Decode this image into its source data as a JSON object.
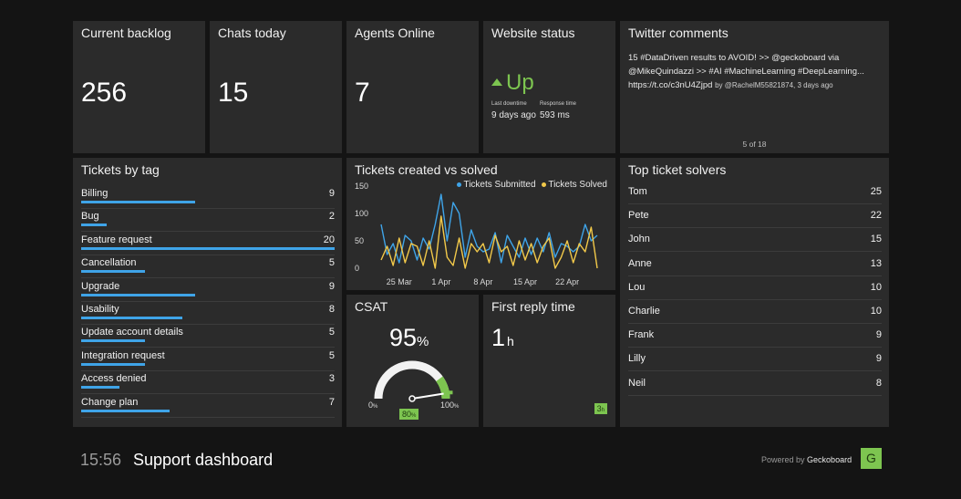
{
  "widgets": {
    "backlog": {
      "title": "Current backlog",
      "value": "256"
    },
    "chats": {
      "title": "Chats today",
      "value": "15"
    },
    "agents": {
      "title": "Agents Online",
      "value": "7"
    },
    "website": {
      "title": "Website status",
      "status": "Up",
      "downtime_label": "Last downtime",
      "downtime_value": "9 days ago",
      "response_label": "Response time",
      "response_value": "593 ms",
      "status_color": "#7dc550"
    },
    "twitter": {
      "title": "Twitter comments",
      "text": "15 #DataDriven results to AVOID! >> @geckoboard via @MikeQuindazzi >> #AI #MachineLearning #DeepLearning... https://t.co/c3nU4Zjpd",
      "byline": "by @RachelM55821874, 3 days ago",
      "pager": "5 of 18"
    },
    "tags": {
      "title": "Tickets by tag",
      "max": 20,
      "items": [
        {
          "label": "Billing",
          "value": 9
        },
        {
          "label": "Bug",
          "value": 2
        },
        {
          "label": "Feature request",
          "value": 20
        },
        {
          "label": "Cancellation",
          "value": 5
        },
        {
          "label": "Upgrade",
          "value": 9
        },
        {
          "label": "Usability",
          "value": 8
        },
        {
          "label": "Update account details",
          "value": 5
        },
        {
          "label": "Integration request",
          "value": 5
        },
        {
          "label": "Access denied",
          "value": 3
        },
        {
          "label": "Change plan",
          "value": 7
        }
      ]
    },
    "solvers": {
      "title": "Top ticket solvers",
      "items": [
        {
          "name": "Tom",
          "value": "25"
        },
        {
          "name": "Pete",
          "value": "22"
        },
        {
          "name": "John",
          "value": "15"
        },
        {
          "name": "Anne",
          "value": "13"
        },
        {
          "name": "Lou",
          "value": "10"
        },
        {
          "name": "Charlie",
          "value": "10"
        },
        {
          "name": "Frank",
          "value": "9"
        },
        {
          "name": "Lilly",
          "value": "9"
        },
        {
          "name": "Neil",
          "value": "8"
        }
      ]
    },
    "csat": {
      "title": "CSAT",
      "value": "95",
      "unit": "%",
      "min_label": "0",
      "max_label": "100",
      "unit_small": "%",
      "target_label": "80",
      "target_value": 80,
      "current_value": 95
    },
    "first_reply": {
      "title": "First reply time",
      "value": "1",
      "unit": "h",
      "target": "3",
      "target_unit": "h"
    }
  },
  "chart_data": {
    "type": "line",
    "title": "Tickets created vs solved",
    "ylim": [
      0,
      150
    ],
    "yticks": [
      "0",
      "50",
      "100",
      "150"
    ],
    "xticks": [
      {
        "label": "25 Mar",
        "index": 3
      },
      {
        "label": "1 Apr",
        "index": 10
      },
      {
        "label": "8 Apr",
        "index": 17
      },
      {
        "label": "15 Apr",
        "index": 24
      },
      {
        "label": "22 Apr",
        "index": 31
      }
    ],
    "series": [
      {
        "name": "Tickets Submitted",
        "color": "#3fa4e8",
        "values": [
          80,
          25,
          45,
          10,
          60,
          50,
          15,
          55,
          35,
          80,
          135,
          50,
          120,
          100,
          20,
          70,
          40,
          30,
          35,
          65,
          10,
          60,
          40,
          20,
          55,
          25,
          55,
          30,
          65,
          20,
          45,
          40,
          30,
          40,
          80,
          50,
          60
        ]
      },
      {
        "name": "Tickets Solved",
        "color": "#f2c94a",
        "values": [
          15,
          40,
          5,
          55,
          10,
          45,
          40,
          5,
          50,
          0,
          95,
          20,
          5,
          55,
          0,
          45,
          30,
          45,
          10,
          60,
          30,
          40,
          5,
          50,
          15,
          45,
          10,
          40,
          55,
          0,
          20,
          50,
          10,
          45,
          30,
          75,
          0
        ]
      }
    ]
  },
  "footer": {
    "time": "15:56",
    "title": "Support dashboard",
    "powered_prefix": "Powered by",
    "powered_brand": "Geckoboard",
    "logo_letter": "G"
  }
}
